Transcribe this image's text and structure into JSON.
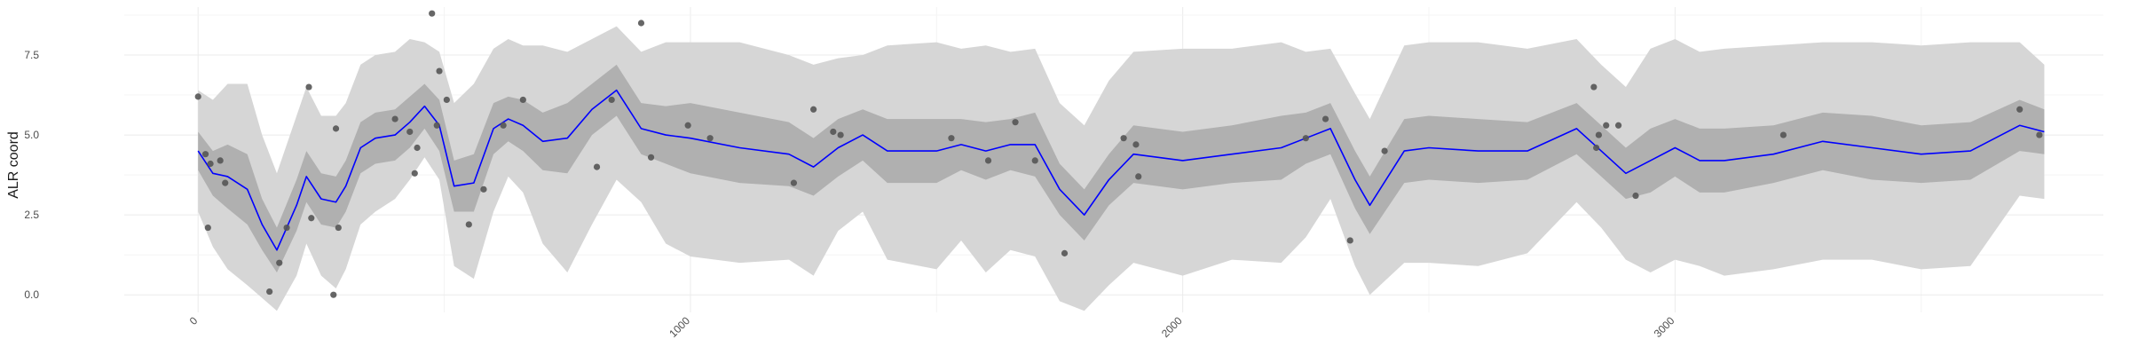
{
  "chart_data": {
    "type": "line",
    "title": "",
    "xlabel": "",
    "ylabel": "ALR coord",
    "xlim": [
      -150,
      3870
    ],
    "ylim": [
      -0.55,
      9.0
    ],
    "x_ticks": [
      0,
      1000,
      2000,
      3000
    ],
    "x_tick_labels": [
      "0",
      "1000",
      "2000",
      "3000"
    ],
    "y_ticks": [
      0.0,
      2.5,
      5.0,
      7.5
    ],
    "y_tick_labels": [
      "0.0",
      "2.5",
      "5.0",
      "7.5"
    ],
    "grid": true,
    "legend": "none",
    "colors": {
      "mean_line": "#0000ff",
      "inner_band": "#b0b0b0",
      "outer_band": "#d6d6d6",
      "points": "#555555",
      "grid": "#ebebeb"
    },
    "series": [
      {
        "role": "posterior_mean",
        "x": [
          0,
          30,
          60,
          100,
          130,
          160,
          200,
          220,
          250,
          280,
          300,
          330,
          360,
          400,
          430,
          460,
          490,
          520,
          560,
          600,
          630,
          660,
          700,
          750,
          800,
          850,
          900,
          950,
          1000,
          1100,
          1200,
          1250,
          1300,
          1350,
          1400,
          1500,
          1550,
          1600,
          1650,
          1700,
          1750,
          1800,
          1850,
          1900,
          2000,
          2100,
          2200,
          2250,
          2300,
          2350,
          2380,
          2450,
          2500,
          2600,
          2700,
          2800,
          2850,
          2900,
          2950,
          3000,
          3050,
          3100,
          3200,
          3300,
          3400,
          3500,
          3600,
          3700,
          3750
        ],
        "y": [
          4.5,
          3.8,
          3.7,
          3.3,
          2.2,
          1.4,
          2.8,
          3.7,
          3.0,
          2.9,
          3.4,
          4.6,
          4.9,
          5.0,
          5.4,
          5.9,
          5.3,
          3.4,
          3.5,
          5.2,
          5.5,
          5.3,
          4.8,
          4.9,
          5.8,
          6.4,
          5.2,
          5.0,
          4.9,
          4.6,
          4.4,
          4.0,
          4.6,
          5.0,
          4.5,
          4.5,
          4.7,
          4.5,
          4.7,
          4.7,
          3.3,
          2.5,
          3.6,
          4.4,
          4.2,
          4.4,
          4.6,
          4.9,
          5.2,
          3.6,
          2.8,
          4.5,
          4.6,
          4.5,
          4.5,
          5.2,
          4.5,
          3.8,
          4.2,
          4.6,
          4.2,
          4.2,
          4.4,
          4.8,
          4.6,
          4.4,
          4.5,
          5.3,
          5.1
        ]
      },
      {
        "role": "inner_interval",
        "x": [
          0,
          30,
          60,
          100,
          130,
          160,
          200,
          220,
          250,
          280,
          300,
          330,
          360,
          400,
          430,
          460,
          490,
          520,
          560,
          600,
          630,
          660,
          700,
          750,
          800,
          850,
          900,
          950,
          1000,
          1100,
          1200,
          1250,
          1300,
          1350,
          1400,
          1500,
          1550,
          1600,
          1650,
          1700,
          1750,
          1800,
          1850,
          1900,
          2000,
          2100,
          2200,
          2250,
          2300,
          2350,
          2380,
          2450,
          2500,
          2600,
          2700,
          2800,
          2850,
          2900,
          2950,
          3000,
          3050,
          3100,
          3200,
          3300,
          3400,
          3500,
          3600,
          3700,
          3750
        ],
        "y_low": [
          3.9,
          3.1,
          2.7,
          2.2,
          1.4,
          0.7,
          2.0,
          2.9,
          2.2,
          2.1,
          2.6,
          3.8,
          4.1,
          4.2,
          4.6,
          5.2,
          4.5,
          2.6,
          2.6,
          4.4,
          4.8,
          4.5,
          3.9,
          3.8,
          5.0,
          5.6,
          4.4,
          4.1,
          3.8,
          3.5,
          3.4,
          3.1,
          3.7,
          4.2,
          3.5,
          3.5,
          3.9,
          3.6,
          3.9,
          3.7,
          2.5,
          1.7,
          2.8,
          3.5,
          3.3,
          3.5,
          3.6,
          4.1,
          4.4,
          2.7,
          1.9,
          3.5,
          3.6,
          3.5,
          3.6,
          4.4,
          3.7,
          3.0,
          3.2,
          3.7,
          3.2,
          3.2,
          3.5,
          3.9,
          3.6,
          3.5,
          3.6,
          4.5,
          4.4
        ],
        "y_high": [
          5.1,
          4.5,
          4.7,
          4.4,
          3.0,
          2.1,
          3.6,
          4.5,
          3.8,
          3.7,
          4.2,
          5.4,
          5.7,
          5.8,
          6.2,
          6.6,
          6.1,
          4.2,
          4.4,
          6.0,
          6.2,
          6.1,
          5.7,
          6.0,
          6.6,
          7.2,
          6.0,
          5.9,
          6.0,
          5.7,
          5.4,
          4.9,
          5.5,
          5.8,
          5.5,
          5.5,
          5.5,
          5.4,
          5.5,
          5.7,
          4.1,
          3.3,
          4.4,
          5.3,
          5.1,
          5.3,
          5.6,
          5.7,
          6.0,
          4.5,
          3.7,
          5.5,
          5.6,
          5.5,
          5.4,
          6.0,
          5.3,
          4.6,
          5.2,
          5.5,
          5.2,
          5.2,
          5.3,
          5.7,
          5.6,
          5.3,
          5.4,
          6.1,
          5.8
        ]
      },
      {
        "role": "outer_interval",
        "x": [
          0,
          30,
          60,
          100,
          130,
          160,
          200,
          220,
          250,
          280,
          300,
          330,
          360,
          400,
          430,
          460,
          490,
          520,
          560,
          600,
          630,
          660,
          700,
          750,
          800,
          850,
          900,
          950,
          1000,
          1100,
          1200,
          1250,
          1300,
          1350,
          1400,
          1500,
          1550,
          1600,
          1650,
          1700,
          1750,
          1800,
          1850,
          1900,
          2000,
          2100,
          2200,
          2250,
          2300,
          2350,
          2380,
          2450,
          2500,
          2600,
          2700,
          2800,
          2850,
          2900,
          2950,
          3000,
          3050,
          3100,
          3200,
          3300,
          3400,
          3500,
          3600,
          3700,
          3750
        ],
        "y_low": [
          2.6,
          1.5,
          0.8,
          0.3,
          -0.1,
          -0.5,
          0.6,
          1.6,
          0.6,
          0.2,
          0.8,
          2.2,
          2.6,
          3.0,
          3.6,
          4.3,
          3.6,
          0.9,
          0.5,
          2.6,
          3.7,
          3.2,
          1.6,
          0.7,
          2.2,
          3.6,
          2.9,
          1.6,
          1.2,
          1.0,
          1.1,
          0.6,
          2.0,
          2.6,
          1.1,
          0.8,
          1.7,
          0.7,
          1.4,
          1.2,
          -0.2,
          -0.5,
          0.3,
          1.0,
          0.6,
          1.1,
          1.0,
          1.8,
          3.0,
          0.9,
          0.0,
          1.0,
          1.0,
          0.9,
          1.3,
          2.9,
          2.1,
          1.1,
          0.7,
          1.1,
          0.9,
          0.6,
          0.8,
          1.1,
          1.1,
          0.8,
          0.9,
          3.1,
          3.0
        ],
        "y_high": [
          6.4,
          6.1,
          6.6,
          6.6,
          5.0,
          3.8,
          5.6,
          6.5,
          5.6,
          5.6,
          6.0,
          7.2,
          7.5,
          7.6,
          8.0,
          7.9,
          7.6,
          6.0,
          6.6,
          7.7,
          8.0,
          7.8,
          7.8,
          7.6,
          8.0,
          8.4,
          7.6,
          7.9,
          7.9,
          7.9,
          7.5,
          7.2,
          7.4,
          7.5,
          7.8,
          7.9,
          7.7,
          7.8,
          7.6,
          7.7,
          6.0,
          5.3,
          6.7,
          7.6,
          7.7,
          7.7,
          7.9,
          7.6,
          7.7,
          6.3,
          5.5,
          7.8,
          7.9,
          7.9,
          7.7,
          8.0,
          7.2,
          6.5,
          7.7,
          8.0,
          7.6,
          7.7,
          7.8,
          7.9,
          7.9,
          7.8,
          7.9,
          7.9,
          7.2
        ]
      },
      {
        "role": "observations",
        "points": [
          [
            0,
            6.2
          ],
          [
            15,
            4.4
          ],
          [
            20,
            2.1
          ],
          [
            25,
            4.1
          ],
          [
            45,
            4.2
          ],
          [
            55,
            3.5
          ],
          [
            145,
            0.1
          ],
          [
            165,
            1.0
          ],
          [
            180,
            2.1
          ],
          [
            225,
            6.5
          ],
          [
            230,
            2.4
          ],
          [
            275,
            0.0
          ],
          [
            280,
            5.2
          ],
          [
            285,
            2.1
          ],
          [
            400,
            5.5
          ],
          [
            430,
            5.1
          ],
          [
            440,
            3.8
          ],
          [
            445,
            4.6
          ],
          [
            475,
            8.8
          ],
          [
            485,
            5.3
          ],
          [
            490,
            7.0
          ],
          [
            505,
            6.1
          ],
          [
            550,
            2.2
          ],
          [
            580,
            3.3
          ],
          [
            620,
            5.3
          ],
          [
            660,
            6.1
          ],
          [
            810,
            4.0
          ],
          [
            840,
            6.1
          ],
          [
            900,
            8.5
          ],
          [
            920,
            4.3
          ],
          [
            995,
            5.3
          ],
          [
            1040,
            4.9
          ],
          [
            1210,
            3.5
          ],
          [
            1250,
            5.8
          ],
          [
            1290,
            5.1
          ],
          [
            1305,
            5.0
          ],
          [
            1530,
            4.9
          ],
          [
            1605,
            4.2
          ],
          [
            1660,
            5.4
          ],
          [
            1700,
            4.2
          ],
          [
            1760,
            1.3
          ],
          [
            1880,
            4.9
          ],
          [
            1905,
            4.7
          ],
          [
            1910,
            3.7
          ],
          [
            2250,
            4.9
          ],
          [
            2290,
            5.5
          ],
          [
            2340,
            1.7
          ],
          [
            2410,
            4.5
          ],
          [
            2835,
            6.5
          ],
          [
            2840,
            4.6
          ],
          [
            2845,
            5.0
          ],
          [
            2860,
            5.3
          ],
          [
            2885,
            5.3
          ],
          [
            2920,
            3.1
          ],
          [
            3220,
            5.0
          ],
          [
            3700,
            5.8
          ],
          [
            3740,
            5.0
          ]
        ]
      }
    ]
  }
}
